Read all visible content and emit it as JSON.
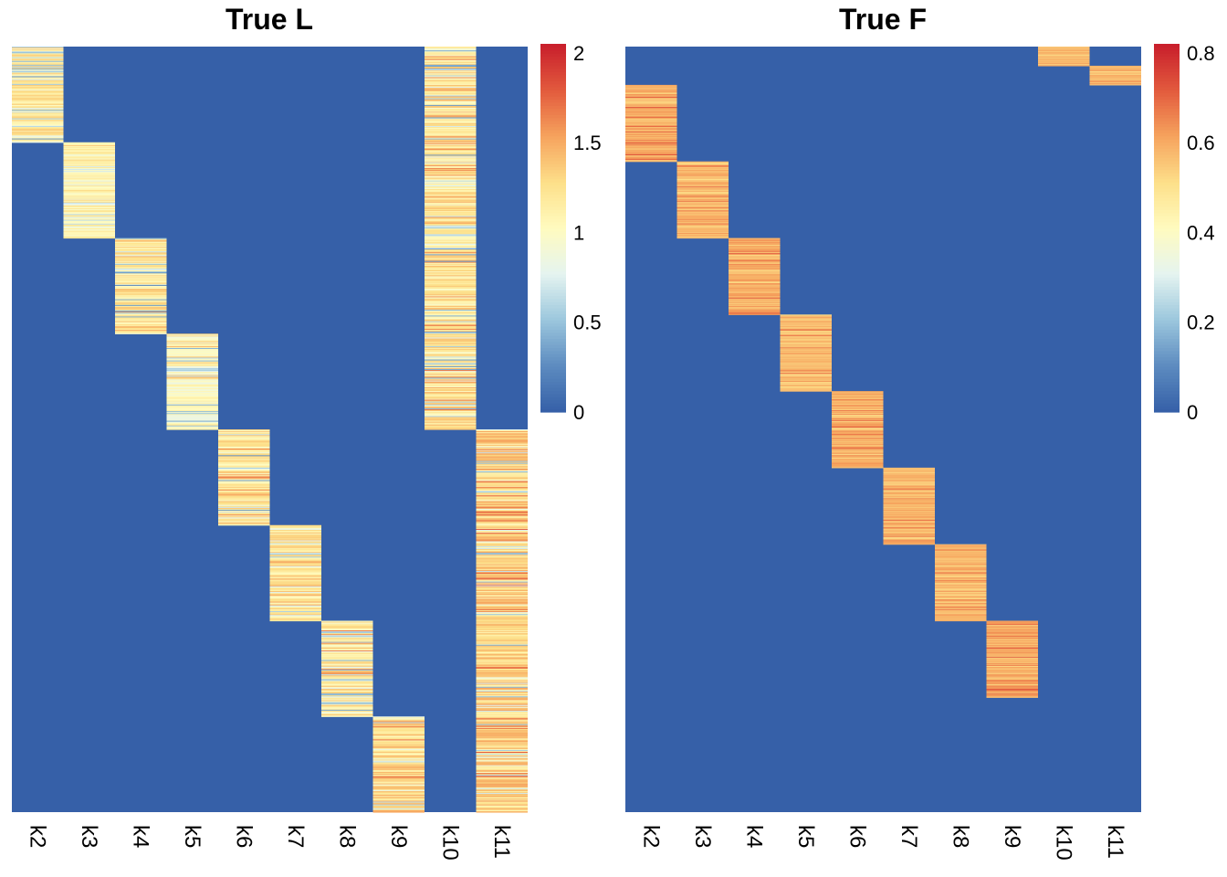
{
  "chart_data": [
    {
      "type": "heatmap",
      "title": "True L",
      "columns": [
        "k2",
        "k3",
        "k4",
        "k5",
        "k6",
        "k7",
        "k8",
        "k9",
        "k10",
        "k11"
      ],
      "n_rows": 800,
      "row_blocks": [
        {
          "column": "k2",
          "rows": [
            0,
            100
          ],
          "value_range": [
            0.3,
            1.4
          ],
          "typical": 1.2
        },
        {
          "column": "k3",
          "rows": [
            100,
            200
          ],
          "value_range": [
            0.6,
            1.4
          ],
          "typical": 1.1
        },
        {
          "column": "k4",
          "rows": [
            200,
            300
          ],
          "value_range": [
            0.2,
            1.5
          ],
          "typical": 1.2
        },
        {
          "column": "k5",
          "rows": [
            300,
            400
          ],
          "value_range": [
            0.4,
            1.5
          ],
          "typical": 1.0
        },
        {
          "column": "k6",
          "rows": [
            400,
            500
          ],
          "value_range": [
            0.3,
            1.7
          ],
          "typical": 1.2
        },
        {
          "column": "k7",
          "rows": [
            500,
            600
          ],
          "value_range": [
            0.5,
            1.6
          ],
          "typical": 1.2
        },
        {
          "column": "k8",
          "rows": [
            600,
            700
          ],
          "value_range": [
            0.4,
            1.7
          ],
          "typical": 1.2
        },
        {
          "column": "k9",
          "rows": [
            700,
            800
          ],
          "value_range": [
            0.6,
            1.8
          ],
          "typical": 1.3
        },
        {
          "column": "k10",
          "rows": [
            0,
            400
          ],
          "value_range": [
            0.3,
            1.7
          ],
          "typical": 1.2
        },
        {
          "column": "k11",
          "rows": [
            400,
            800
          ],
          "value_range": [
            0.4,
            1.8
          ],
          "typical": 1.3
        }
      ],
      "background_value": 0,
      "colorbar": {
        "min": 0,
        "max": 2.05,
        "ticks": [
          0,
          0.5,
          1,
          1.5,
          2
        ],
        "tick_labels": [
          "0",
          "0.5",
          "1",
          "1.5",
          "2"
        ]
      },
      "colormap": [
        "#3660a8",
        "#5d8cc0",
        "#9cc7dd",
        "#e5f4f0",
        "#fffbbf",
        "#fde08a",
        "#f6a45e",
        "#e35c3e",
        "#c9202c"
      ]
    },
    {
      "type": "heatmap",
      "title": "True F",
      "columns": [
        "k2",
        "k3",
        "k4",
        "k5",
        "k6",
        "k7",
        "k8",
        "k9",
        "k10",
        "k11"
      ],
      "n_rows": 1000,
      "row_blocks": [
        {
          "column": "k10",
          "rows": [
            0,
            25
          ],
          "value_range": [
            0.5,
            0.65
          ],
          "typical": 0.58
        },
        {
          "column": "k11",
          "rows": [
            25,
            50
          ],
          "value_range": [
            0.5,
            0.65
          ],
          "typical": 0.58
        },
        {
          "column": "k2",
          "rows": [
            50,
            150
          ],
          "value_range": [
            0.5,
            0.75
          ],
          "typical": 0.6
        },
        {
          "column": "k3",
          "rows": [
            150,
            250
          ],
          "value_range": [
            0.5,
            0.72
          ],
          "typical": 0.58
        },
        {
          "column": "k4",
          "rows": [
            250,
            350
          ],
          "value_range": [
            0.5,
            0.75
          ],
          "typical": 0.6
        },
        {
          "column": "k5",
          "rows": [
            350,
            450
          ],
          "value_range": [
            0.5,
            0.7
          ],
          "typical": 0.57
        },
        {
          "column": "k6",
          "rows": [
            450,
            550
          ],
          "value_range": [
            0.5,
            0.72
          ],
          "typical": 0.6
        },
        {
          "column": "k7",
          "rows": [
            550,
            650
          ],
          "value_range": [
            0.5,
            0.72
          ],
          "typical": 0.59
        },
        {
          "column": "k8",
          "rows": [
            650,
            750
          ],
          "value_range": [
            0.5,
            0.7
          ],
          "typical": 0.58
        },
        {
          "column": "k9",
          "rows": [
            750,
            850
          ],
          "value_range": [
            0.5,
            0.75
          ],
          "typical": 0.6
        }
      ],
      "background_value": 0,
      "colorbar": {
        "min": 0,
        "max": 0.82,
        "ticks": [
          0,
          0.2,
          0.4,
          0.6,
          0.8
        ],
        "tick_labels": [
          "0",
          "0.2",
          "0.4",
          "0.6",
          "0.8"
        ]
      },
      "colormap": [
        "#3660a8",
        "#5d8cc0",
        "#9cc7dd",
        "#e5f4f0",
        "#fffbbf",
        "#fde08a",
        "#f6a45e",
        "#e35c3e",
        "#c9202c"
      ]
    }
  ]
}
